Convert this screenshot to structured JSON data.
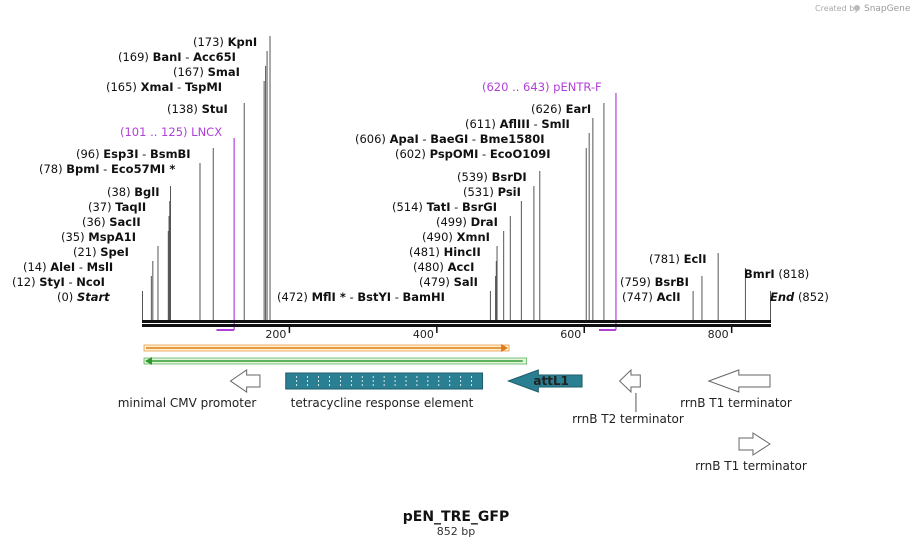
{
  "app": {
    "credit_text": "Created by",
    "credit_brand": "SnapGene"
  },
  "sequence": {
    "name": "pEN_TRE_GFP",
    "length_label": "852 bp",
    "length_bp": 852
  },
  "axis": {
    "ticks": [
      {
        "bp": 200,
        "label": "200"
      },
      {
        "bp": 400,
        "label": "400"
      },
      {
        "bp": 600,
        "label": "600"
      },
      {
        "bp": 800,
        "label": "800"
      }
    ]
  },
  "sites": [
    {
      "id": "start",
      "pos": 0,
      "pos_text": "(0)",
      "names": [
        "Start"
      ],
      "italic": true,
      "star": [
        false
      ]
    },
    {
      "id": "styi-ncoi",
      "pos": 12,
      "pos_text": "(12)",
      "names": [
        "StyI",
        "NcoI"
      ],
      "star": [
        false,
        false
      ]
    },
    {
      "id": "alei-msli",
      "pos": 14,
      "pos_text": "(14)",
      "names": [
        "AleI",
        "MslI"
      ],
      "star": [
        false,
        false
      ]
    },
    {
      "id": "spei",
      "pos": 21,
      "pos_text": "(21)",
      "names": [
        "SpeI"
      ],
      "star": [
        false
      ]
    },
    {
      "id": "mspa1i",
      "pos": 35,
      "pos_text": "(35)",
      "names": [
        "MspA1I"
      ],
      "star": [
        false
      ]
    },
    {
      "id": "sacii",
      "pos": 36,
      "pos_text": "(36)",
      "names": [
        "SacII"
      ],
      "star": [
        false
      ]
    },
    {
      "id": "taqii",
      "pos": 37,
      "pos_text": "(37)",
      "names": [
        "TaqII"
      ],
      "star": [
        false
      ]
    },
    {
      "id": "bgli",
      "pos": 38,
      "pos_text": "(38)",
      "names": [
        "BglI"
      ],
      "star": [
        false
      ]
    },
    {
      "id": "bpmi-eco57mi",
      "pos": 78,
      "pos_text": "(78)",
      "names": [
        "BpmI",
        "Eco57MI"
      ],
      "star": [
        false,
        true
      ]
    },
    {
      "id": "esp3i-bsmbi",
      "pos": 96,
      "pos_text": "(96)",
      "names": [
        "Esp3I",
        "BsmBI"
      ],
      "star": [
        false,
        false
      ]
    },
    {
      "id": "stui",
      "pos": 138,
      "pos_text": "(138)",
      "names": [
        "StuI"
      ],
      "star": [
        false
      ]
    },
    {
      "id": "xmai-tspmi",
      "pos": 165,
      "pos_text": "(165)",
      "names": [
        "XmaI",
        "TspMI"
      ],
      "star": [
        false,
        false
      ]
    },
    {
      "id": "smai",
      "pos": 167,
      "pos_text": "(167)",
      "names": [
        "SmaI"
      ],
      "star": [
        false
      ]
    },
    {
      "id": "bani-acc65i",
      "pos": 169,
      "pos_text": "(169)",
      "names": [
        "BanI",
        "Acc65I"
      ],
      "star": [
        false,
        false
      ]
    },
    {
      "id": "kpni",
      "pos": 173,
      "pos_text": "(173)",
      "names": [
        "KpnI"
      ],
      "star": [
        false
      ]
    },
    {
      "id": "mfli-bstyi-bamhi",
      "pos": 472,
      "pos_text": "(472)",
      "names": [
        "MflI",
        "BstYI",
        "BamHI"
      ],
      "star": [
        true,
        false,
        false
      ]
    },
    {
      "id": "sali",
      "pos": 479,
      "pos_text": "(479)",
      "names": [
        "SalI"
      ],
      "star": [
        false
      ]
    },
    {
      "id": "acci",
      "pos": 480,
      "pos_text": "(480)",
      "names": [
        "AccI"
      ],
      "star": [
        false
      ]
    },
    {
      "id": "hincii",
      "pos": 481,
      "pos_text": "(481)",
      "names": [
        "HincII"
      ],
      "star": [
        false
      ]
    },
    {
      "id": "xmni",
      "pos": 490,
      "pos_text": "(490)",
      "names": [
        "XmnI"
      ],
      "star": [
        false
      ]
    },
    {
      "id": "drai",
      "pos": 499,
      "pos_text": "(499)",
      "names": [
        "DraI"
      ],
      "star": [
        false
      ]
    },
    {
      "id": "tati-bsrgi",
      "pos": 514,
      "pos_text": "(514)",
      "names": [
        "TatI",
        "BsrGI"
      ],
      "star": [
        false,
        false
      ]
    },
    {
      "id": "psii",
      "pos": 531,
      "pos_text": "(531)",
      "names": [
        "PsiI"
      ],
      "star": [
        false
      ]
    },
    {
      "id": "bsrdi",
      "pos": 539,
      "pos_text": "(539)",
      "names": [
        "BsrDI"
      ],
      "star": [
        false
      ]
    },
    {
      "id": "pspomi-ecoo109i",
      "pos": 602,
      "pos_text": "(602)",
      "names": [
        "PspOMI",
        "EcoO109I"
      ],
      "star": [
        false,
        false
      ]
    },
    {
      "id": "apai-baegi-bme1580i",
      "pos": 606,
      "pos_text": "(606)",
      "names": [
        "ApaI",
        "BaeGI",
        "Bme1580I"
      ],
      "star": [
        false,
        false,
        false
      ]
    },
    {
      "id": "aflIII-smli",
      "pos": 611,
      "pos_text": "(611)",
      "names": [
        "AflIII",
        "SmlI"
      ],
      "star": [
        false,
        false
      ]
    },
    {
      "id": "eari",
      "pos": 626,
      "pos_text": "(626)",
      "names": [
        "EarI"
      ],
      "star": [
        false
      ]
    },
    {
      "id": "acli",
      "pos": 747,
      "pos_text": "(747)",
      "names": [
        "AclI"
      ],
      "star": [
        false
      ]
    },
    {
      "id": "bsrbi",
      "pos": 759,
      "pos_text": "(759)",
      "names": [
        "BsrBI"
      ],
      "star": [
        false
      ]
    },
    {
      "id": "ecli",
      "pos": 781,
      "pos_text": "(781)",
      "names": [
        "EclI"
      ],
      "star": [
        false
      ]
    },
    {
      "id": "bmri",
      "pos": 818,
      "pos_text": "(818)",
      "names": [
        "BmrI"
      ],
      "star": [
        false
      ]
    },
    {
      "id": "end",
      "pos": 852,
      "pos_text": "(852)",
      "names": [
        "End"
      ],
      "italic": true,
      "star": [
        false
      ]
    }
  ],
  "primers": [
    {
      "id": "lncx",
      "name": "LNCX",
      "range_text": "(101 .. 125)",
      "start": 101,
      "end": 125
    },
    {
      "id": "pentr-f",
      "name": "pENTR-F",
      "range_text": "(620 .. 643)",
      "start": 620,
      "end": 643
    }
  ],
  "features": [
    {
      "id": "minimal-cmv-promoter",
      "name": "minimal CMV promoter",
      "start": 120,
      "end": 160,
      "direction": "reverse",
      "style": "open"
    },
    {
      "id": "tetracycline-response-element",
      "name": "tetracycline response element",
      "start": 195,
      "end": 462,
      "direction": "none",
      "style": "filled-box"
    },
    {
      "id": "attl1",
      "name": "attL1",
      "start": 497,
      "end": 597,
      "direction": "reverse",
      "style": "filled"
    },
    {
      "id": "rrnb-t2-terminator",
      "name": "rrnB T2 terminator",
      "start": 648,
      "end": 676,
      "direction": "reverse",
      "style": "open"
    },
    {
      "id": "rrnb-t1-terminator",
      "name": "rrnB T1 terminator",
      "start": 769,
      "end": 852,
      "direction": "reverse",
      "style": "open"
    },
    {
      "id": "rrnb-t1-terminator-2",
      "name": "rrnB T1 terminator",
      "start": 810,
      "end": 852,
      "direction": "forward",
      "style": "open"
    }
  ],
  "orfs": [
    {
      "id": "orf-forward",
      "start": 0,
      "end": 498,
      "direction": "forward",
      "color": "#e07b1a"
    },
    {
      "id": "orf-reverse",
      "start": 0,
      "end": 522,
      "direction": "reverse",
      "color": "#2f9a2f"
    }
  ],
  "colors": {
    "primer": "#b040d8",
    "feature_fill": "#2a7f93",
    "orf_fill": "#fff1c9",
    "orf_rev_fill": "#e4f6dd"
  }
}
